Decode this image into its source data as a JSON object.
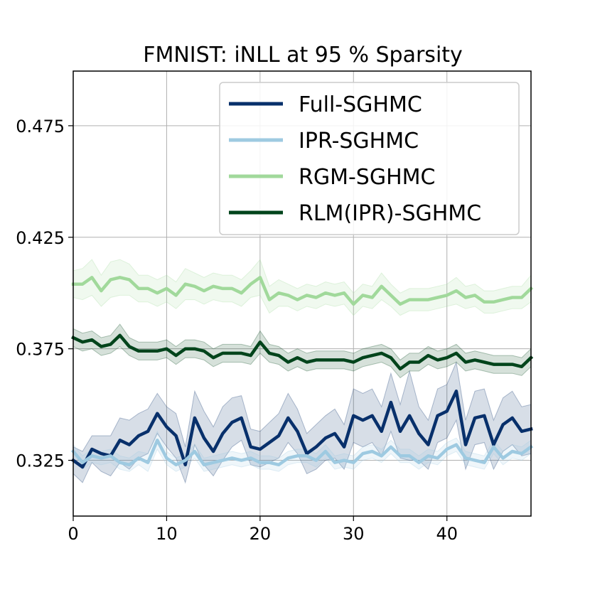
{
  "chart_data": {
    "type": "line",
    "title": "FMNIST: iNLL at 95 % Sparsity",
    "xlabel": "",
    "ylabel": "",
    "xlim": [
      0,
      49
    ],
    "ylim": [
      0.3,
      0.4995
    ],
    "xticks": [
      0,
      10,
      20,
      30,
      40
    ],
    "xtick_labels": [
      "0",
      "10",
      "20",
      "30",
      "40"
    ],
    "yticks": [
      0.325,
      0.375,
      0.425,
      0.475
    ],
    "ytick_labels": [
      "0.325",
      "0.375",
      "0.425",
      "0.475"
    ],
    "grid": true,
    "legend_position": "top-right",
    "x": [
      0,
      1,
      2,
      3,
      4,
      5,
      6,
      7,
      8,
      9,
      10,
      11,
      12,
      13,
      14,
      15,
      16,
      17,
      18,
      19,
      20,
      21,
      22,
      23,
      24,
      25,
      26,
      27,
      28,
      29,
      30,
      31,
      32,
      33,
      34,
      35,
      36,
      37,
      38,
      39,
      40,
      41,
      42,
      43,
      44,
      45,
      46,
      47,
      48,
      49
    ],
    "series": [
      {
        "name": "Full-SGHMC",
        "color": "#08306b",
        "values": [
          0.325,
          0.322,
          0.33,
          0.328,
          0.327,
          0.334,
          0.332,
          0.336,
          0.338,
          0.346,
          0.34,
          0.336,
          0.323,
          0.344,
          0.335,
          0.329,
          0.337,
          0.342,
          0.344,
          0.331,
          0.33,
          0.333,
          0.336,
          0.344,
          0.338,
          0.328,
          0.331,
          0.335,
          0.337,
          0.331,
          0.345,
          0.343,
          0.345,
          0.338,
          0.351,
          0.338,
          0.345,
          0.337,
          0.332,
          0.345,
          0.347,
          0.356,
          0.332,
          0.344,
          0.345,
          0.332,
          0.341,
          0.344,
          0.338,
          0.339
        ],
        "band": [
          0.006,
          0.007,
          0.006,
          0.008,
          0.009,
          0.01,
          0.011,
          0.01,
          0.01,
          0.009,
          0.009,
          0.01,
          0.008,
          0.012,
          0.012,
          0.011,
          0.012,
          0.011,
          0.01,
          0.008,
          0.008,
          0.009,
          0.01,
          0.011,
          0.01,
          0.009,
          0.01,
          0.01,
          0.011,
          0.01,
          0.012,
          0.012,
          0.012,
          0.011,
          0.013,
          0.012,
          0.02,
          0.012,
          0.011,
          0.012,
          0.012,
          0.013,
          0.011,
          0.012,
          0.012,
          0.011,
          0.012,
          0.012,
          0.011,
          0.011
        ]
      },
      {
        "name": "IPR-SGHMC",
        "color": "#9ecae1",
        "values": [
          0.329,
          0.324,
          0.327,
          0.326,
          0.327,
          0.324,
          0.323,
          0.326,
          0.324,
          0.334,
          0.326,
          0.323,
          0.325,
          0.329,
          0.323,
          0.324,
          0.325,
          0.326,
          0.325,
          0.326,
          0.324,
          0.324,
          0.323,
          0.326,
          0.327,
          0.327,
          0.325,
          0.329,
          0.324,
          0.325,
          0.324,
          0.328,
          0.329,
          0.327,
          0.331,
          0.327,
          0.327,
          0.324,
          0.327,
          0.326,
          0.33,
          0.332,
          0.326,
          0.325,
          0.324,
          0.331,
          0.326,
          0.329,
          0.328,
          0.331
        ],
        "band": [
          0.003,
          0.003,
          0.003,
          0.003,
          0.003,
          0.003,
          0.003,
          0.003,
          0.004,
          0.004,
          0.003,
          0.003,
          0.003,
          0.003,
          0.003,
          0.003,
          0.003,
          0.003,
          0.003,
          0.003,
          0.003,
          0.003,
          0.003,
          0.003,
          0.003,
          0.003,
          0.003,
          0.003,
          0.003,
          0.003,
          0.003,
          0.003,
          0.003,
          0.003,
          0.003,
          0.003,
          0.003,
          0.003,
          0.003,
          0.003,
          0.003,
          0.003,
          0.003,
          0.003,
          0.003,
          0.003,
          0.003,
          0.003,
          0.003,
          0.003
        ]
      },
      {
        "name": "RGM-SGHMC",
        "color": "#a1d99b",
        "values": [
          0.404,
          0.404,
          0.407,
          0.401,
          0.406,
          0.407,
          0.406,
          0.402,
          0.402,
          0.4,
          0.402,
          0.399,
          0.404,
          0.403,
          0.401,
          0.403,
          0.402,
          0.402,
          0.4,
          0.404,
          0.407,
          0.397,
          0.4,
          0.399,
          0.397,
          0.399,
          0.398,
          0.4,
          0.399,
          0.4,
          0.395,
          0.399,
          0.398,
          0.403,
          0.399,
          0.395,
          0.397,
          0.397,
          0.397,
          0.398,
          0.399,
          0.401,
          0.398,
          0.399,
          0.396,
          0.396,
          0.397,
          0.398,
          0.398,
          0.402
        ],
        "band": [
          0.006,
          0.007,
          0.008,
          0.007,
          0.008,
          0.008,
          0.007,
          0.006,
          0.006,
          0.006,
          0.006,
          0.006,
          0.007,
          0.006,
          0.006,
          0.006,
          0.006,
          0.006,
          0.006,
          0.006,
          0.008,
          0.006,
          0.006,
          0.005,
          0.005,
          0.005,
          0.005,
          0.005,
          0.005,
          0.005,
          0.005,
          0.005,
          0.005,
          0.006,
          0.005,
          0.005,
          0.005,
          0.005,
          0.005,
          0.005,
          0.005,
          0.006,
          0.005,
          0.005,
          0.005,
          0.005,
          0.005,
          0.005,
          0.005,
          0.006
        ]
      },
      {
        "name": "RLM(IPR)-SGHMC",
        "color": "#00441b",
        "values": [
          0.38,
          0.378,
          0.379,
          0.376,
          0.377,
          0.381,
          0.376,
          0.374,
          0.374,
          0.374,
          0.375,
          0.372,
          0.375,
          0.375,
          0.374,
          0.371,
          0.373,
          0.373,
          0.373,
          0.372,
          0.378,
          0.373,
          0.372,
          0.369,
          0.371,
          0.369,
          0.37,
          0.37,
          0.37,
          0.37,
          0.369,
          0.371,
          0.372,
          0.373,
          0.371,
          0.366,
          0.369,
          0.369,
          0.372,
          0.37,
          0.371,
          0.373,
          0.369,
          0.37,
          0.369,
          0.368,
          0.368,
          0.368,
          0.367,
          0.371
        ],
        "band": [
          0.004,
          0.004,
          0.004,
          0.004,
          0.004,
          0.005,
          0.004,
          0.004,
          0.004,
          0.004,
          0.004,
          0.004,
          0.004,
          0.004,
          0.004,
          0.004,
          0.004,
          0.004,
          0.004,
          0.004,
          0.005,
          0.004,
          0.004,
          0.004,
          0.004,
          0.004,
          0.004,
          0.004,
          0.004,
          0.004,
          0.004,
          0.004,
          0.004,
          0.004,
          0.004,
          0.004,
          0.004,
          0.004,
          0.004,
          0.004,
          0.004,
          0.004,
          0.004,
          0.004,
          0.004,
          0.004,
          0.004,
          0.004,
          0.004,
          0.004
        ]
      }
    ]
  }
}
